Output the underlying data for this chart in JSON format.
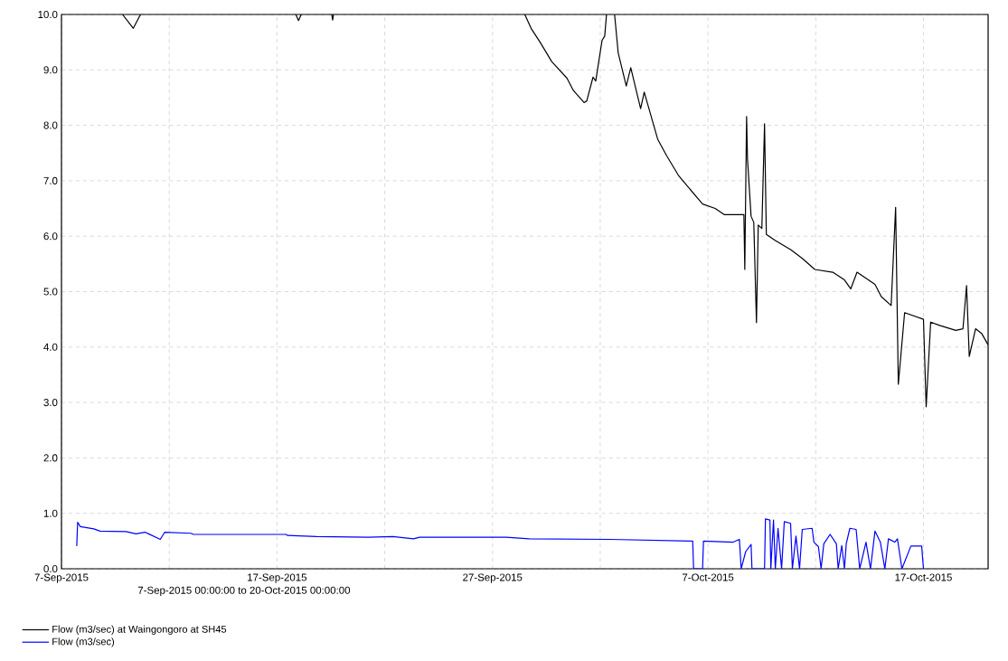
{
  "chart_data": {
    "type": "line",
    "xlabel": "7-Sep-2015 00:00:00 to 20-Oct-2015 00:00:00",
    "xlim": [
      "2015-09-07T00:00",
      "2015-10-20T00:00"
    ],
    "xticks": [
      {
        "value": "2015-09-07",
        "label": "7-Sep-2015"
      },
      {
        "value": "2015-09-12",
        "label": null
      },
      {
        "value": "2015-09-17",
        "label": "17-Sep-2015"
      },
      {
        "value": "2015-09-22",
        "label": null
      },
      {
        "value": "2015-09-27",
        "label": "27-Sep-2015"
      },
      {
        "value": "2015-10-02",
        "label": null
      },
      {
        "value": "2015-10-07",
        "label": "7-Oct-2015"
      },
      {
        "value": "2015-10-12",
        "label": null
      },
      {
        "value": "2015-10-17",
        "label": "17-Oct-2015"
      }
    ],
    "ylim": [
      0,
      10
    ],
    "yticks": [
      {
        "value": 0,
        "label": "0.0"
      },
      {
        "value": 1,
        "label": "1.0"
      },
      {
        "value": 2,
        "label": "2.0"
      },
      {
        "value": 3,
        "label": "3.0"
      },
      {
        "value": 4,
        "label": "4.0"
      },
      {
        "value": 5,
        "label": "5.0"
      },
      {
        "value": 6,
        "label": "6.0"
      },
      {
        "value": 7,
        "label": "7.0"
      },
      {
        "value": 8,
        "label": "8.0"
      },
      {
        "value": 9,
        "label": "9.0"
      },
      {
        "value": 10,
        "label": "10.0"
      }
    ],
    "grid": true,
    "legend": "bottom",
    "series": [
      {
        "name": "Flow (m3/sec) at Waingongoro at SH45",
        "color": "#000000",
        "x": [
          "2015-09-09T20:00",
          "2015-09-10T08:00",
          "2015-09-10T16:00",
          "2015-09-14T00:00",
          "2015-09-17T21:00",
          "2015-09-18T00:00",
          "2015-09-18T03:00",
          "2015-09-19T00:00",
          "2015-09-19T13:00",
          "2015-09-19T14:00",
          "2015-09-19T15:00",
          "2015-09-24T00:00",
          "2015-09-28T12:00",
          "2015-09-28T19:00",
          "2015-09-29T05:00",
          "2015-09-29T18:00",
          "2015-09-30T11:00",
          "2015-09-30T18:00",
          "2015-10-01T06:00",
          "2015-10-01T09:00",
          "2015-10-01T16:00",
          "2015-10-01T19:00",
          "2015-10-02T02:00",
          "2015-10-02T05:00",
          "2015-10-02T07:00",
          "2015-10-02T12:00",
          "2015-10-02T16:00",
          "2015-10-02T20:00",
          "2015-10-03T05:00",
          "2015-10-03T10:00",
          "2015-10-03T21:00",
          "2015-10-04T01:00",
          "2015-10-04T16:00",
          "2015-10-05T02:00",
          "2015-10-05T15:00",
          "2015-10-05T19:00",
          "2015-10-06T18:00",
          "2015-10-07T08:00",
          "2015-10-07T18:00",
          "2015-10-08T16:00",
          "2015-10-08T17:00",
          "2015-10-08T19:00",
          "2015-10-08T20:00",
          "2015-10-09T00:00",
          "2015-10-09T03:00",
          "2015-10-09T06:00",
          "2015-10-09T08:00",
          "2015-10-09T12:00",
          "2015-10-09T15:00",
          "2015-10-09T17:00",
          "2015-10-10T03:00",
          "2015-10-10T20:00",
          "2015-10-11T09:00",
          "2015-10-11T23:00",
          "2015-10-12T19:00",
          "2015-10-13T08:00",
          "2015-10-13T15:00",
          "2015-10-13T22:00",
          "2015-10-14T18:00",
          "2015-10-15T01:00",
          "2015-10-15T12:00",
          "2015-10-15T17:00",
          "2015-10-15T20:00",
          "2015-10-16T03:00",
          "2015-10-17T00:00",
          "2015-10-17T03:00",
          "2015-10-17T08:00",
          "2015-10-17T18:00",
          "2015-10-18T12:00",
          "2015-10-18T20:00",
          "2015-10-19T00:00",
          "2015-10-19T03:00",
          "2015-10-19T10:00",
          "2015-10-19T17:00",
          "2015-10-20T00:00"
        ],
        "values": [
          10.0,
          9.75,
          10.0,
          null,
          10.0,
          9.89,
          10.0,
          null,
          10.0,
          9.9,
          10.0,
          null,
          10.0,
          9.75,
          9.5,
          9.15,
          8.85,
          8.63,
          8.41,
          8.44,
          8.87,
          8.8,
          9.53,
          9.61,
          10.0,
          null,
          10.0,
          9.31,
          8.71,
          9.04,
          8.3,
          8.6,
          7.75,
          7.45,
          7.1,
          7.02,
          6.58,
          6.5,
          6.39,
          6.39,
          5.4,
          8.16,
          7.4,
          6.36,
          6.25,
          4.44,
          6.2,
          6.14,
          8.03,
          6.03,
          5.92,
          5.76,
          5.6,
          5.4,
          5.35,
          5.21,
          5.05,
          5.35,
          5.13,
          4.91,
          4.75,
          6.52,
          3.33,
          4.62,
          4.5,
          2.92,
          4.45,
          4.39,
          4.3,
          4.33,
          5.11,
          3.83,
          4.33,
          4.24,
          4.04
        ]
      },
      {
        "name": "Flow (m3/sec)",
        "color": "#0000ff",
        "x": [
          "2015-09-07T17:00",
          "2015-09-07T18:00",
          "2015-09-07T21:00",
          "2015-09-08T12:00",
          "2015-09-08T19:00",
          "2015-09-10T00:00",
          "2015-09-10T11:00",
          "2015-09-10T21:00",
          "2015-09-11T01:00",
          "2015-09-11T14:00",
          "2015-09-11T19:00",
          "2015-09-13T00:00",
          "2015-09-13T03:00",
          "2015-09-17T10:00",
          "2015-09-17T12:00",
          "2015-09-18T20:00",
          "2015-09-21T06:00",
          "2015-09-22T09:00",
          "2015-09-23T08:00",
          "2015-09-23T15:00",
          "2015-09-27T15:00",
          "2015-09-28T17:00",
          "2015-10-02T11:00",
          "2015-10-06T07:00",
          "2015-10-06T08:00",
          "2015-10-06T18:00",
          "2015-10-06T19:00",
          "2015-10-08T04:00",
          "2015-10-08T11:00",
          "2015-10-08T13:00",
          "2015-10-08T18:00",
          "2015-10-09T00:00",
          "2015-10-09T01:00",
          "2015-10-09T15:00",
          "2015-10-09T16:00",
          "2015-10-09T21:00",
          "2015-10-09T22:00",
          "2015-10-10T01:00",
          "2015-10-10T03:00",
          "2015-10-10T06:00",
          "2015-10-10T10:00",
          "2015-10-10T13:00",
          "2015-10-10T20:00",
          "2015-10-10T22:00",
          "2015-10-11T02:00",
          "2015-10-11T06:00",
          "2015-10-11T09:00",
          "2015-10-11T20:00",
          "2015-10-11T22:00",
          "2015-10-12T03:00",
          "2015-10-12T06:00",
          "2015-10-12T09:00",
          "2015-10-12T16:00",
          "2015-10-12T23:00",
          "2015-10-13T01:00",
          "2015-10-13T05:00",
          "2015-10-13T08:00",
          "2015-10-13T10:00",
          "2015-10-13T14:00",
          "2015-10-13T21:00",
          "2015-10-14T01:00",
          "2015-10-14T08:00",
          "2015-10-14T13:00",
          "2015-10-14T18:00",
          "2015-10-15T00:00",
          "2015-10-15T05:00",
          "2015-10-15T09:00",
          "2015-10-15T16:00",
          "2015-10-15T19:00",
          "2015-10-16T00:00",
          "2015-10-16T10:00",
          "2015-10-16T22:00",
          "2015-10-17T00:00"
        ],
        "values": [
          0.41,
          0.84,
          0.76,
          0.72,
          0.68,
          0.67,
          0.63,
          0.66,
          0.63,
          0.53,
          0.66,
          0.64,
          0.62,
          0.62,
          0.6,
          0.58,
          0.57,
          0.58,
          0.54,
          0.57,
          0.57,
          0.54,
          0.53,
          0.5,
          0,
          0,
          0.5,
          0.48,
          0.53,
          0,
          0.31,
          0.44,
          0,
          0,
          0.9,
          0.88,
          0,
          0.88,
          0,
          0.73,
          0,
          0.85,
          0.82,
          0,
          0.59,
          0,
          0.71,
          0.73,
          0.48,
          0.4,
          0,
          0.45,
          0.62,
          0.45,
          0,
          0.42,
          0,
          0.45,
          0.73,
          0.71,
          0,
          0.48,
          0,
          0.68,
          0.48,
          0,
          0.54,
          0.48,
          0.54,
          0,
          0.41,
          0.41,
          0
        ]
      }
    ]
  }
}
